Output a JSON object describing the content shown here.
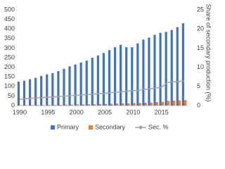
{
  "chart_data": {
    "type": "bar",
    "categories": [
      "1990",
      null,
      null,
      null,
      null,
      "1995",
      null,
      null,
      null,
      null,
      "2000",
      null,
      null,
      null,
      null,
      "2005",
      null,
      null,
      null,
      null,
      "2010",
      null,
      null,
      null,
      null,
      "2015",
      null,
      null,
      null,
      null
    ],
    "series": [
      {
        "name": "Primary",
        "color": "#4472c4",
        "values": [
          125,
          130,
          138,
          145,
          155,
          163,
          170,
          180,
          192,
          205,
          215,
          225,
          235,
          250,
          262,
          275,
          290,
          305,
          318,
          305,
          305,
          325,
          345,
          355,
          370,
          380,
          385,
          395,
          410,
          430
        ]
      },
      {
        "name": "Secondary",
        "color": "#ed7d31",
        "values": [
          2,
          2,
          3,
          3,
          3,
          4,
          4,
          4,
          5,
          5,
          6,
          6,
          7,
          7,
          8,
          9,
          10,
          11,
          12,
          12,
          13,
          14,
          15,
          16,
          18,
          20,
          25,
          26,
          27,
          29
        ]
      },
      {
        "name": "Sec. %",
        "color": "#a5a5a5",
        "type": "line",
        "axis": "y2",
        "values": [
          1.6,
          1.8,
          1.9,
          2.0,
          2.1,
          2.2,
          2.3,
          2.4,
          2.5,
          2.6,
          2.7,
          2.8,
          2.9,
          3.0,
          3.1,
          3.2,
          3.4,
          3.5,
          3.6,
          3.8,
          3.9,
          4.0,
          4.2,
          4.4,
          4.6,
          4.8,
          6.0,
          6.2,
          6.3,
          6.4
        ]
      }
    ],
    "ylim": [
      0,
      500
    ],
    "yticks": [
      0,
      50,
      100,
      150,
      200,
      250,
      300,
      350,
      400,
      450,
      500
    ],
    "y2lim": [
      0,
      25
    ],
    "y2ticks": [
      0,
      5,
      10,
      15,
      20,
      25
    ],
    "y2label": "Share of secondary production (%)",
    "legend": "bottom"
  }
}
